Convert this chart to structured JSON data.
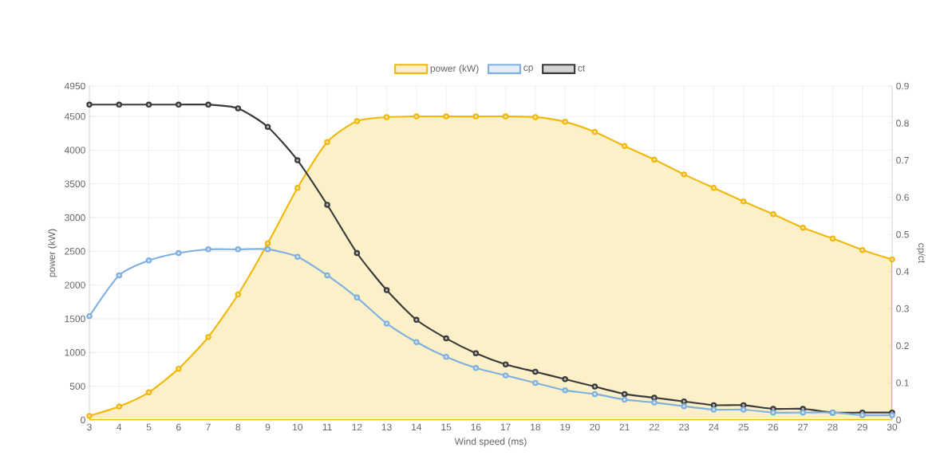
{
  "chart_data": {
    "type": "area",
    "xlabel": "Wind speed (ms)",
    "ylabel": "power (kW)",
    "y2label": "cp/ct",
    "x": [
      3,
      4,
      5,
      6,
      7,
      8,
      9,
      10,
      11,
      12,
      13,
      14,
      15,
      16,
      17,
      18,
      19,
      20,
      21,
      22,
      23,
      24,
      25,
      26,
      27,
      28,
      29,
      30
    ],
    "series": [
      {
        "name": "power (kW)",
        "color": "#f0b90b",
        "values": [
          60,
          200,
          410,
          760,
          1230,
          1860,
          2620,
          3440,
          4120,
          4430,
          4490,
          4500,
          4500,
          4500,
          4500,
          4490,
          4420,
          4270,
          4060,
          3860,
          3640,
          3440,
          3240,
          3050,
          2850,
          2690,
          2520,
          2380
        ]
      },
      {
        "name": "cp",
        "type": "line",
        "axis": "y2",
        "color": "#7fb0e0",
        "values": [
          0.28,
          0.39,
          0.43,
          0.45,
          0.46,
          0.46,
          0.46,
          0.44,
          0.39,
          0.33,
          0.26,
          0.21,
          0.17,
          0.14,
          0.12,
          0.1,
          0.08,
          0.07,
          0.055,
          0.047,
          0.037,
          0.028,
          0.028,
          0.02,
          0.02,
          0.02,
          0.013,
          0.013
        ]
      },
      {
        "name": "ct",
        "type": "line",
        "axis": "y2",
        "color": "#3a3a3a",
        "values": [
          0.85,
          0.85,
          0.85,
          0.85,
          0.85,
          0.84,
          0.79,
          0.7,
          0.58,
          0.45,
          0.35,
          0.27,
          0.22,
          0.18,
          0.15,
          0.13,
          0.11,
          0.09,
          0.07,
          0.06,
          0.05,
          0.04,
          0.04,
          0.03,
          0.03,
          0.02,
          0.02,
          0.02
        ]
      }
    ],
    "xlim": [
      3,
      30
    ],
    "xticks": [
      3,
      4,
      5,
      6,
      7,
      8,
      9,
      10,
      11,
      12,
      13,
      14,
      15,
      16,
      17,
      18,
      19,
      20,
      21,
      22,
      23,
      24,
      25,
      26,
      27,
      28,
      29,
      30
    ],
    "ylim": [
      0,
      4950
    ],
    "yticks": [
      0,
      500,
      1000,
      1500,
      2000,
      2500,
      3000,
      3500,
      4000,
      4500,
      4950
    ],
    "y2lim": [
      0,
      0.9
    ],
    "y2ticks": [
      0,
      0.1,
      0.2,
      0.3,
      0.4,
      0.5,
      0.6,
      0.7,
      0.8,
      0.9
    ],
    "grid": true,
    "legend": "top",
    "marker": "circle",
    "line_style": "solid"
  }
}
